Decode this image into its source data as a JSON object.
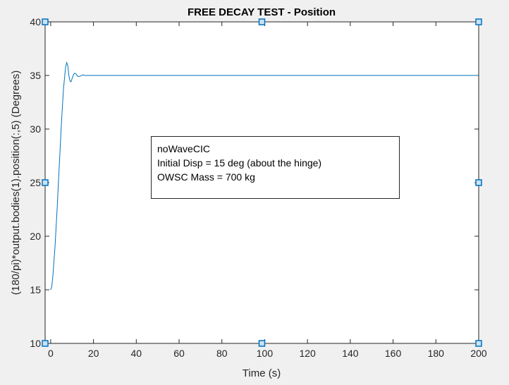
{
  "chart_data": {
    "type": "line",
    "title": "FREE DECAY TEST - Position",
    "xlabel": "Time (s)",
    "ylabel": "(180/pi)*output.bodies(1).position(:,5)  (Degrees)",
    "xlim": [
      -2.6,
      200
    ],
    "ylim": [
      10,
      40
    ],
    "xticks": [
      0,
      20,
      40,
      60,
      80,
      100,
      120,
      140,
      160,
      180,
      200
    ],
    "yticks": [
      10,
      15,
      20,
      25,
      30,
      35,
      40
    ],
    "grid": false,
    "line_color": "#0072bd",
    "series": [
      {
        "name": "position",
        "x": [
          0,
          0.5,
          1,
          2,
          3,
          4,
          5,
          6,
          7,
          7.5,
          8,
          8.5,
          9,
          9.5,
          10,
          10.5,
          11,
          11.5,
          12,
          12.5,
          13,
          14,
          15,
          16,
          18,
          20,
          25,
          40,
          100,
          200
        ],
        "y": [
          15.0,
          15.3,
          16.2,
          19.0,
          22.5,
          26.5,
          30.5,
          33.8,
          35.8,
          36.2,
          35.9,
          35.0,
          34.5,
          34.4,
          34.7,
          35.0,
          35.2,
          35.2,
          35.1,
          34.95,
          34.9,
          34.95,
          35.05,
          35.0,
          35.0,
          35.0,
          35.0,
          35.0,
          35.0,
          35.0
        ]
      }
    ],
    "data_tips": [
      {
        "x": -2.6,
        "y": 40
      },
      {
        "x": 98.7,
        "y": 40
      },
      {
        "x": 200,
        "y": 40
      },
      {
        "x": -2.6,
        "y": 25
      },
      {
        "x": 200,
        "y": 25
      },
      {
        "x": -2.6,
        "y": 10
      },
      {
        "x": 98.7,
        "y": 10
      },
      {
        "x": 200,
        "y": 10
      }
    ],
    "annotation": [
      "noWaveCIC",
      "Initial Disp = 15 deg (about the hinge)",
      "OWSC Mass = 700 kg"
    ]
  },
  "annotation": {
    "line1": "noWaveCIC",
    "line2": "Initial Disp = 15 deg (about the hinge)",
    "line3": "OWSC Mass = 700 kg"
  }
}
